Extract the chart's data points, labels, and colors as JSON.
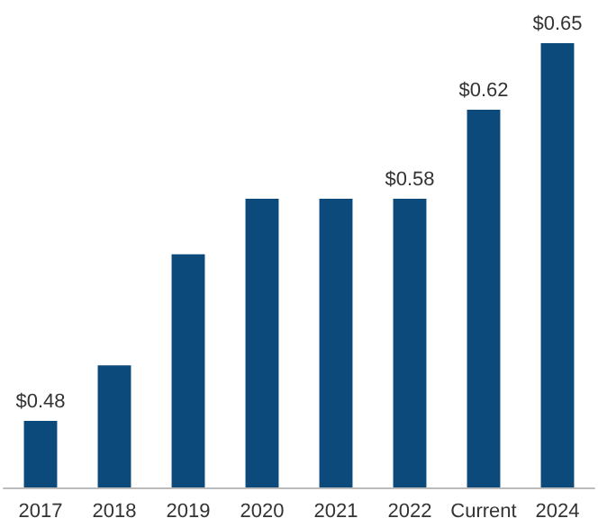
{
  "chart_data": {
    "type": "bar",
    "categories": [
      "2017",
      "2018",
      "2019",
      "2020",
      "2021",
      "2022",
      "Current",
      "2024"
    ],
    "values": [
      0.48,
      0.505,
      0.555,
      0.58,
      0.58,
      0.58,
      0.62,
      0.65
    ],
    "value_labels": [
      "$0.48",
      null,
      null,
      null,
      null,
      "$0.58",
      "$0.62",
      "$0.65"
    ],
    "color": "#0b4a7a",
    "ylim": [
      0.45,
      0.65
    ],
    "tick_labels": "x"
  }
}
